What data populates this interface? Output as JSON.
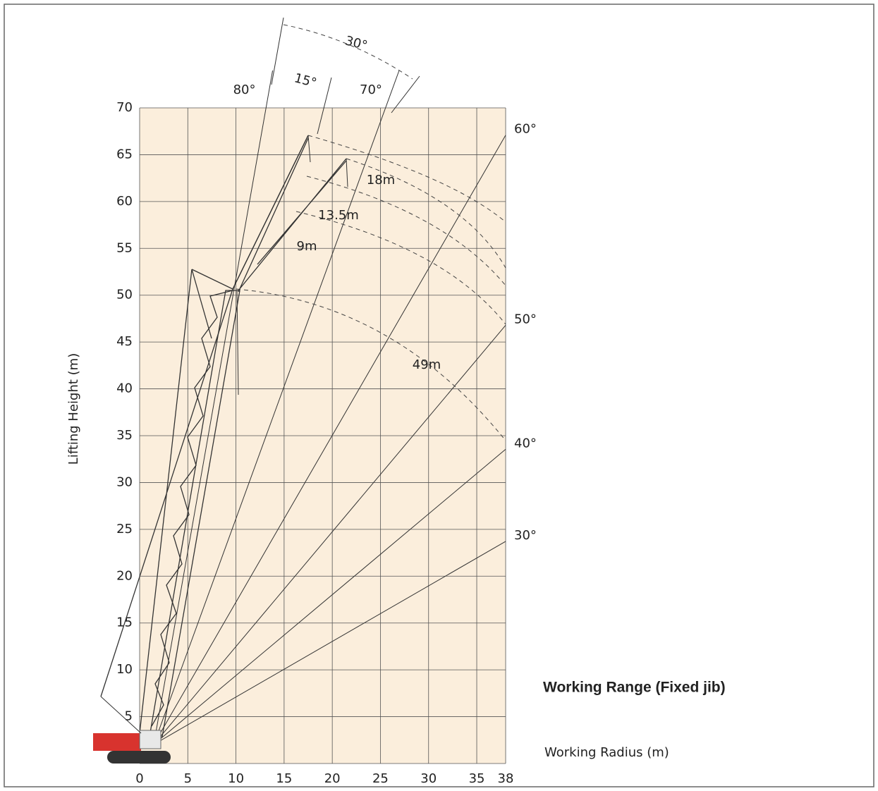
{
  "title": "Working Range (Fixed jib)",
  "x_axis": {
    "label": "Working Radius (m)",
    "ticks": [
      0,
      5,
      10,
      15,
      20,
      25,
      30,
      35,
      38
    ]
  },
  "y_axis": {
    "label": "Lifting Height (m)",
    "ticks": [
      5,
      10,
      15,
      20,
      25,
      30,
      35,
      40,
      45,
      50,
      55,
      60,
      65,
      70
    ]
  },
  "boom_angles": [
    {
      "value": 30,
      "label": "30°"
    },
    {
      "value": 40,
      "label": "40°"
    },
    {
      "value": 50,
      "label": "50°"
    },
    {
      "value": 60,
      "label": "60°"
    },
    {
      "value": 70,
      "label": "70°"
    },
    {
      "value": 80,
      "label": "80°"
    }
  ],
  "jib_offsets": [
    "15°",
    "30°"
  ],
  "lengths": {
    "boom": "49m",
    "jib_a": "9m",
    "jib_b": "13.5m",
    "jib_c": "18m"
  }
}
